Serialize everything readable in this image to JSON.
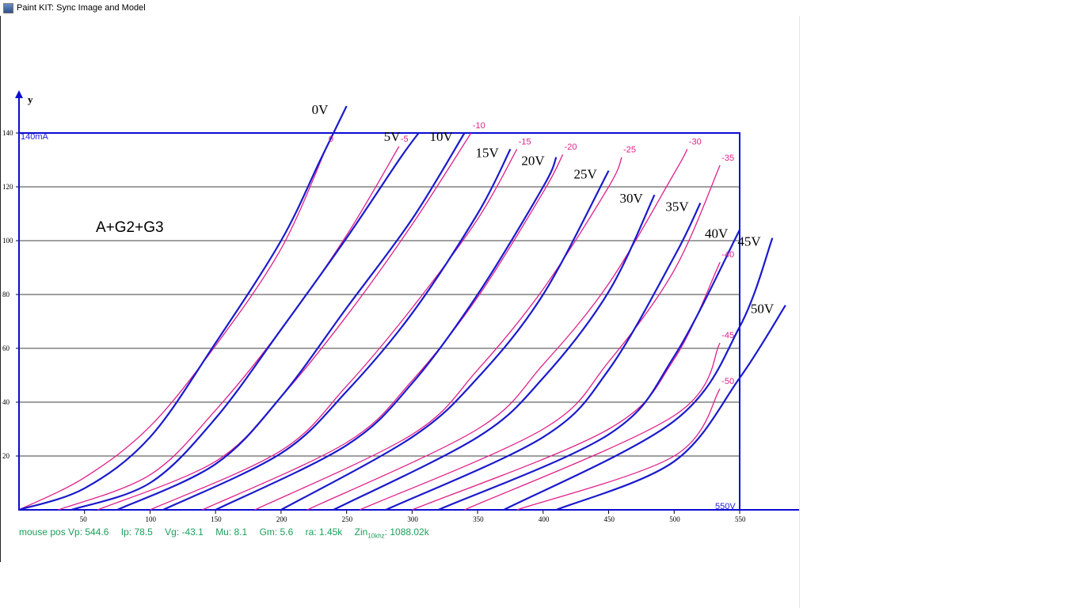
{
  "window": {
    "title": "Paint KIT: Sync Image and Model"
  },
  "plot": {
    "y_axis_label": "y",
    "current_label": "140mA",
    "voltage_label": "550V",
    "annotation": "A+G2+G3"
  },
  "status": {
    "vp": "mouse pos Vp: 544.6",
    "ip": "Ip: 78.5",
    "vg": "Vg: -43.1",
    "mu": "Mu: 8.1",
    "gm": "Gm: 5.6",
    "ra": "ra: 1.45k",
    "zin_prefix": "Zin",
    "zin_sub": "10khz",
    "zin_value": ": 1088.02k"
  },
  "chart_data": {
    "type": "line",
    "xlabel": "",
    "ylabel": "y",
    "xlim": [
      0,
      600
    ],
    "ylim": [
      0,
      140
    ],
    "x_ticks": [
      50,
      100,
      150,
      200,
      250,
      300,
      350,
      400,
      450,
      500,
      550
    ],
    "y_ticks": [
      20,
      40,
      60,
      80,
      100,
      120,
      140
    ],
    "grid": true,
    "colors": {
      "image_curves": "#1a1acd",
      "model_curves": "#e0208a",
      "axis": "#0b0bd4",
      "grid": "#000000"
    },
    "image_series": [
      {
        "name": "0V",
        "points": [
          [
            0,
            0
          ],
          [
            50,
            8
          ],
          [
            100,
            27
          ],
          [
            150,
            62
          ],
          [
            200,
            100
          ],
          [
            230,
            130
          ],
          [
            250,
            150
          ]
        ]
      },
      {
        "name": "5V",
        "points": [
          [
            40,
            0
          ],
          [
            100,
            10
          ],
          [
            150,
            34
          ],
          [
            200,
            67
          ],
          [
            250,
            101
          ],
          [
            290,
            130
          ],
          [
            305,
            140
          ]
        ]
      },
      {
        "name": "10V",
        "points": [
          [
            75,
            0
          ],
          [
            150,
            17
          ],
          [
            200,
            42
          ],
          [
            250,
            75
          ],
          [
            300,
            108
          ],
          [
            340,
            140
          ]
        ]
      },
      {
        "name": "15V",
        "points": [
          [
            110,
            0
          ],
          [
            200,
            21
          ],
          [
            250,
            44
          ],
          [
            300,
            73
          ],
          [
            350,
            110
          ],
          [
            375,
            134
          ]
        ]
      },
      {
        "name": "20V",
        "points": [
          [
            150,
            0
          ],
          [
            250,
            24
          ],
          [
            300,
            47
          ],
          [
            350,
            80
          ],
          [
            400,
            120
          ],
          [
            410,
            131
          ]
        ]
      },
      {
        "name": "25V",
        "points": [
          [
            200,
            0
          ],
          [
            300,
            27
          ],
          [
            350,
            49
          ],
          [
            400,
            80
          ],
          [
            450,
            126
          ]
        ]
      },
      {
        "name": "30V",
        "points": [
          [
            240,
            0
          ],
          [
            350,
            27
          ],
          [
            400,
            49
          ],
          [
            450,
            81
          ],
          [
            485,
            117
          ]
        ]
      },
      {
        "name": "35V",
        "points": [
          [
            280,
            0
          ],
          [
            400,
            27
          ],
          [
            450,
            52
          ],
          [
            500,
            94
          ],
          [
            520,
            114
          ]
        ]
      },
      {
        "name": "40V",
        "points": [
          [
            320,
            0
          ],
          [
            450,
            28
          ],
          [
            500,
            57
          ],
          [
            550,
            104
          ]
        ]
      },
      {
        "name": "45V",
        "points": [
          [
            370,
            0
          ],
          [
            500,
            33
          ],
          [
            550,
            68
          ],
          [
            575,
            101
          ]
        ]
      },
      {
        "name": "50V",
        "points": [
          [
            410,
            0
          ],
          [
            500,
            18
          ],
          [
            550,
            49
          ],
          [
            585,
            76
          ]
        ]
      }
    ],
    "model_series": [
      {
        "name": "0",
        "points": [
          [
            0,
            0
          ],
          [
            50,
            12
          ],
          [
            100,
            31
          ],
          [
            150,
            61
          ],
          [
            200,
            97
          ],
          [
            235,
            135
          ]
        ]
      },
      {
        "name": "-5",
        "points": [
          [
            30,
            0
          ],
          [
            100,
            13
          ],
          [
            150,
            37
          ],
          [
            200,
            67
          ],
          [
            250,
            102
          ],
          [
            290,
            135
          ]
        ]
      },
      {
        "name": "-10",
        "points": [
          [
            60,
            0
          ],
          [
            150,
            18
          ],
          [
            200,
            42
          ],
          [
            250,
            72
          ],
          [
            300,
            106
          ],
          [
            345,
            140
          ]
        ]
      },
      {
        "name": "-15",
        "points": [
          [
            100,
            0
          ],
          [
            200,
            22
          ],
          [
            250,
            46
          ],
          [
            300,
            75
          ],
          [
            350,
            108
          ],
          [
            380,
            134
          ]
        ]
      },
      {
        "name": "-20",
        "points": [
          [
            140,
            0
          ],
          [
            250,
            25
          ],
          [
            300,
            48
          ],
          [
            350,
            79
          ],
          [
            400,
            118
          ],
          [
            415,
            132
          ]
        ]
      },
      {
        "name": "-25",
        "points": [
          [
            180,
            0
          ],
          [
            300,
            28
          ],
          [
            350,
            52
          ],
          [
            400,
            82
          ],
          [
            450,
            120
          ],
          [
            460,
            131
          ]
        ]
      },
      {
        "name": "-30",
        "points": [
          [
            220,
            0
          ],
          [
            350,
            30
          ],
          [
            400,
            54
          ],
          [
            450,
            84
          ],
          [
            500,
            125
          ],
          [
            510,
            134
          ]
        ]
      },
      {
        "name": "-35",
        "points": [
          [
            260,
            0
          ],
          [
            400,
            30
          ],
          [
            450,
            55
          ],
          [
            500,
            89
          ],
          [
            535,
            128
          ]
        ]
      },
      {
        "name": "-40",
        "points": [
          [
            300,
            0
          ],
          [
            450,
            30
          ],
          [
            500,
            56
          ],
          [
            535,
            92
          ]
        ]
      },
      {
        "name": "-45",
        "points": [
          [
            340,
            0
          ],
          [
            500,
            35
          ],
          [
            535,
            62
          ]
        ]
      },
      {
        "name": "-50",
        "points": [
          [
            380,
            0
          ],
          [
            500,
            20
          ],
          [
            535,
            45
          ]
        ]
      }
    ],
    "image_series_labels": [
      {
        "text": "0V"
      },
      {
        "text": "5V"
      },
      {
        "text": "10V"
      },
      {
        "text": "15V"
      },
      {
        "text": "20V"
      },
      {
        "text": "25V"
      },
      {
        "text": "30V"
      },
      {
        "text": "35V"
      },
      {
        "text": "40V"
      },
      {
        "text": "45V"
      },
      {
        "text": "50V"
      }
    ],
    "model_series_labels": [
      {
        "text": "0"
      },
      {
        "text": "-5"
      },
      {
        "text": "-10"
      },
      {
        "text": "-15"
      },
      {
        "text": "-20"
      },
      {
        "text": "-25"
      },
      {
        "text": "-30"
      },
      {
        "text": "-35"
      },
      {
        "text": "-40"
      },
      {
        "text": "-45"
      },
      {
        "text": "-50"
      }
    ]
  }
}
